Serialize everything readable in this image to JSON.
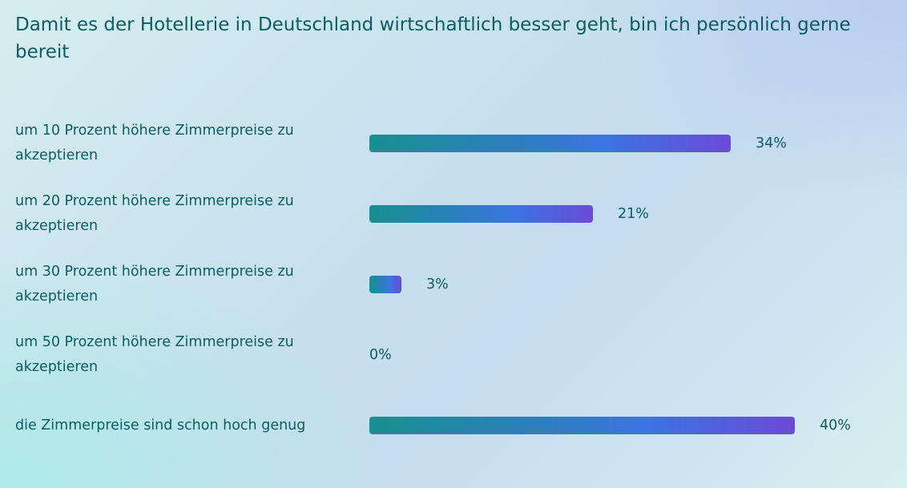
{
  "chart_data": {
    "type": "bar",
    "orientation": "horizontal",
    "title": "Damit es der Hotellerie in Deutschland wirtschaftlich besser geht, bin ich persönlich gerne bereit",
    "categories": [
      "um 10 Prozent höhere Zimmerpreise zu akzeptieren",
      "um 20 Prozent höhere Zimmerpreise zu akzeptieren",
      "um 30 Prozent höhere Zimmerpreise zu akzeptieren",
      "um 50 Prozent höhere Zimmerpreise zu akzeptieren",
      "die Zimmerpreise sind schon hoch genug"
    ],
    "values": [
      34,
      21,
      3,
      0,
      40
    ],
    "value_labels": [
      "34%",
      "21%",
      "3%",
      "0%",
      "40%"
    ],
    "unit": "%",
    "xlim": [
      0,
      40
    ],
    "grid": false,
    "legend": "none",
    "colors": {
      "bar_start": "#16908f",
      "bar_mid": "#3b74e0",
      "bar_end": "#6b4ad8",
      "text": "#0d5c63"
    }
  }
}
